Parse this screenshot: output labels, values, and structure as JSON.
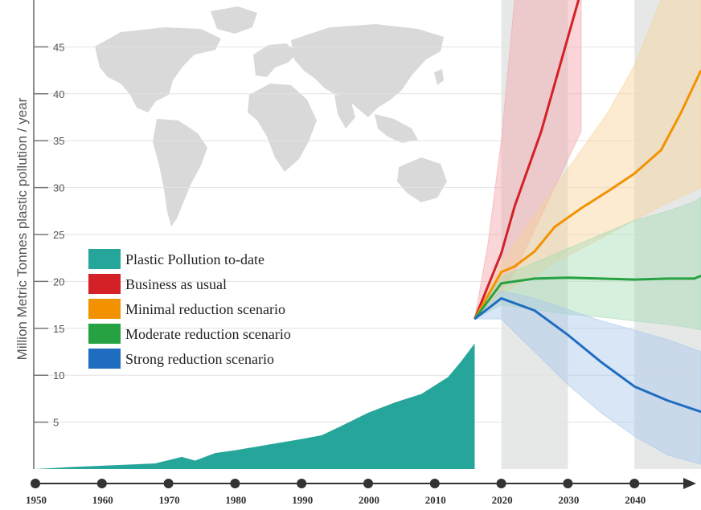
{
  "chart_data": {
    "type": "area",
    "ylabel": "Million Metric Tonnes plastic pollution / year",
    "ylim": [
      0,
      50
    ],
    "y_ticks": [
      5,
      10,
      15,
      20,
      25,
      30,
      35,
      40,
      45
    ],
    "x_range": [
      1950,
      2050
    ],
    "x_ticks": [
      1950,
      1960,
      1970,
      1980,
      1990,
      2000,
      2010,
      2020,
      2030,
      2040
    ],
    "x_tick_labels": [
      "1950",
      "1960",
      "1970",
      "1980",
      "1990",
      "2000",
      "2010",
      "2020",
      "2030",
      "2040"
    ],
    "projection_bands": [
      [
        2020,
        2030
      ],
      [
        2040,
        2050
      ]
    ],
    "grid": true,
    "legend_position": "center-left",
    "background_image": "world-map",
    "historical": {
      "name": "Plastic Pollution to-date",
      "color": "#26a69a",
      "x": [
        1950,
        1955,
        1960,
        1965,
        1968,
        1972,
        1974,
        1977,
        1980,
        1985,
        1990,
        1993,
        1996,
        2000,
        2004,
        2008,
        2010,
        2012,
        2014,
        2016
      ],
      "y": [
        0,
        0.2,
        0.35,
        0.5,
        0.6,
        1.3,
        0.9,
        1.7,
        2.0,
        2.6,
        3.2,
        3.6,
        4.6,
        6.0,
        7.1,
        8.0,
        8.9,
        9.8,
        11.5,
        13.4
      ]
    },
    "series": [
      {
        "name": "Business as usual",
        "color": "#d42027",
        "band_color": "#f4a5a8",
        "x": [
          2016,
          2018,
          2020,
          2022,
          2024,
          2026,
          2028,
          2030,
          2032
        ],
        "y": [
          16.0,
          19.5,
          23.0,
          28.0,
          32.0,
          36.0,
          41.0,
          46.0,
          51.0
        ],
        "lower": [
          16.0,
          17.5,
          19.0,
          21.0,
          24.0,
          27.0,
          30.0,
          33.0,
          36.0
        ],
        "upper": [
          16.0,
          24.0,
          35.0,
          50.0,
          60.0,
          70.0,
          80.0,
          90.0,
          100.0
        ]
      },
      {
        "name": "Minimal reduction scenario",
        "color": "#f39200",
        "band_color": "#f8d29a",
        "x": [
          2016,
          2020,
          2022,
          2025,
          2028,
          2032,
          2036,
          2040,
          2044,
          2047,
          2050
        ],
        "y": [
          16.0,
          21.0,
          21.6,
          23.2,
          25.8,
          27.8,
          29.6,
          31.5,
          34.0,
          38.0,
          42.5
        ],
        "lower": [
          16.0,
          18.5,
          19.5,
          20.5,
          22.0,
          23.5,
          25.0,
          26.5,
          28.0,
          29.0,
          30.0
        ],
        "upper": [
          16.0,
          22.0,
          24.0,
          27.0,
          30.0,
          34.0,
          38.0,
          43.0,
          50.0,
          56.0,
          62.0
        ]
      },
      {
        "name": "Moderate reduction scenario",
        "color": "#27a243",
        "band_color": "#a6dcb4",
        "x": [
          2016,
          2020,
          2025,
          2030,
          2035,
          2040,
          2045,
          2049,
          2050
        ],
        "y": [
          16.0,
          19.8,
          20.3,
          20.4,
          20.3,
          20.2,
          20.3,
          20.3,
          20.6
        ],
        "lower": [
          16.0,
          17.5,
          17.0,
          16.5,
          16.2,
          15.8,
          15.4,
          15.0,
          14.8
        ],
        "upper": [
          16.0,
          20.5,
          22.0,
          23.5,
          25.0,
          26.5,
          27.5,
          28.5,
          29.0
        ]
      },
      {
        "name": "Strong reduction scenario",
        "color": "#1f6dc0",
        "band_color": "#a9c7ea",
        "x": [
          2016,
          2020,
          2025,
          2030,
          2035,
          2040,
          2045,
          2050
        ],
        "y": [
          16.0,
          18.2,
          16.9,
          14.3,
          11.4,
          8.8,
          7.3,
          6.1
        ],
        "lower": [
          16.0,
          16.0,
          12.5,
          9.0,
          6.0,
          3.5,
          1.5,
          0.5
        ],
        "upper": [
          16.0,
          19.0,
          18.2,
          17.0,
          15.8,
          14.8,
          13.8,
          12.5
        ]
      }
    ]
  }
}
